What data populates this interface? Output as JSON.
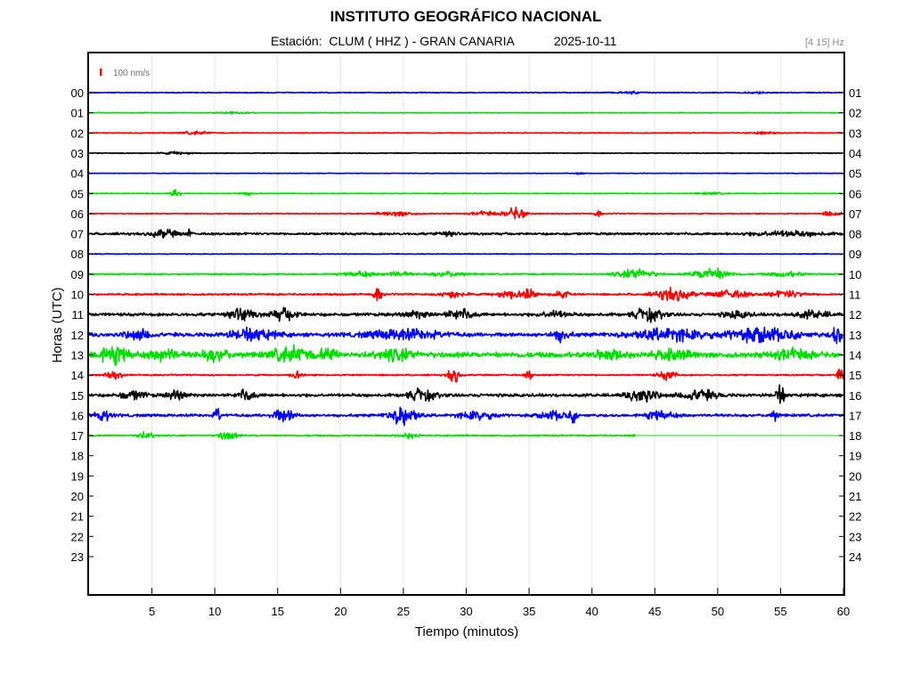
{
  "header": {
    "title": "INSTITUTO GEOGRÁFICO NACIONAL",
    "station_prefix": "Estación:",
    "station": "CLUM ( HHZ ) - GRAN CANARIA",
    "date": "2025-10-11",
    "filter": "[4 15] Hz"
  },
  "chart_data": {
    "type": "line",
    "title": "INSTITUTO GEOGRÁFICO NACIONAL",
    "xlabel": "Tiempo (minutos)",
    "ylabel": "Horas (UTC)",
    "xlim": [
      0,
      60
    ],
    "xticks": [
      5,
      10,
      15,
      20,
      25,
      30,
      35,
      40,
      45,
      50,
      55,
      60
    ],
    "scale_bar": {
      "label": "100 nm/s",
      "color": "#ff0000"
    },
    "left_hour_labels": [
      "00",
      "01",
      "02",
      "03",
      "04",
      "05",
      "06",
      "07",
      "08",
      "09",
      "10",
      "11",
      "12",
      "13",
      "14",
      "15",
      "16",
      "17",
      "18",
      "19",
      "20",
      "21",
      "22",
      "23"
    ],
    "right_hour_labels": [
      "01",
      "02",
      "03",
      "04",
      "05",
      "06",
      "07",
      "08",
      "09",
      "10",
      "11",
      "12",
      "13",
      "14",
      "15",
      "16",
      "17",
      "18",
      "19",
      "20",
      "21",
      "22",
      "23",
      "24"
    ],
    "grid": {
      "vertical": true,
      "horizontal": false
    },
    "trace_colors": [
      "#0000ff",
      "#00e000",
      "#ff0000",
      "#000000"
    ],
    "traces": [
      {
        "hour": "00",
        "noise": 0.6,
        "end_minute": 60,
        "events": [
          [
            43,
            1.5,
            1.5
          ],
          [
            53,
            1,
            1.2
          ]
        ]
      },
      {
        "hour": "01",
        "noise": 0.5,
        "end_minute": 60,
        "events": [
          [
            11.5,
            1.5,
            1.5
          ]
        ]
      },
      {
        "hour": "02",
        "noise": 0.6,
        "end_minute": 60,
        "events": [
          [
            8.5,
            1.5,
            2
          ],
          [
            53.5,
            1.5,
            1.5
          ]
        ]
      },
      {
        "hour": "03",
        "noise": 0.5,
        "end_minute": 60,
        "events": [
          [
            7,
            2,
            1.5
          ]
        ]
      },
      {
        "hour": "04",
        "noise": 0.4,
        "end_minute": 60,
        "events": [
          [
            39,
            0.5,
            1.5
          ]
        ]
      },
      {
        "hour": "05",
        "noise": 0.5,
        "end_minute": 60,
        "events": [
          [
            6.9,
            0.4,
            13
          ],
          [
            12.5,
            1,
            2
          ],
          [
            49.5,
            1.5,
            1.5
          ]
        ]
      },
      {
        "hour": "06",
        "noise": 0.6,
        "end_minute": 60,
        "events": [
          [
            24.5,
            2,
            3
          ],
          [
            31.5,
            1.5,
            3
          ],
          [
            34,
            1.2,
            8
          ],
          [
            40.5,
            0.4,
            4
          ],
          [
            59,
            1,
            3
          ]
        ]
      },
      {
        "hour": "07",
        "noise": 1.5,
        "end_minute": 60,
        "events": [
          [
            6,
            1.5,
            5
          ],
          [
            8,
            0.2,
            6
          ],
          [
            28.5,
            1,
            4
          ],
          [
            55.5,
            4,
            3
          ]
        ]
      },
      {
        "hour": "08",
        "noise": 0.5,
        "end_minute": 60,
        "events": []
      },
      {
        "hour": "09",
        "noise": 1.0,
        "end_minute": 60,
        "events": [
          [
            21.5,
            1.5,
            4
          ],
          [
            24.5,
            1.5,
            3
          ],
          [
            28.5,
            2,
            3
          ],
          [
            43.5,
            2,
            7
          ],
          [
            49.5,
            2,
            8
          ],
          [
            55.5,
            2,
            3
          ]
        ]
      },
      {
        "hour": "10",
        "noise": 1.2,
        "end_minute": 60,
        "events": [
          [
            23,
            0.5,
            9
          ],
          [
            29,
            1.5,
            4
          ],
          [
            33.5,
            1.5,
            5
          ],
          [
            35,
            0.6,
            8
          ],
          [
            37.5,
            1,
            5
          ],
          [
            46.5,
            2,
            8
          ],
          [
            51,
            2,
            5
          ],
          [
            55.5,
            2,
            4
          ]
        ]
      },
      {
        "hour": "11",
        "noise": 2.0,
        "end_minute": 60,
        "events": [
          [
            12,
            1.5,
            8
          ],
          [
            15.5,
            1.5,
            7
          ],
          [
            26,
            1.5,
            4
          ],
          [
            29.5,
            1.5,
            6
          ],
          [
            37,
            1.5,
            4
          ],
          [
            44.5,
            1.5,
            8
          ],
          [
            51.5,
            1.5,
            4
          ],
          [
            57.5,
            2,
            4
          ]
        ]
      },
      {
        "hour": "12",
        "noise": 2.5,
        "end_minute": 60,
        "events": [
          [
            4,
            1.5,
            6
          ],
          [
            13,
            2.5,
            7
          ],
          [
            25,
            4,
            6
          ],
          [
            37.5,
            1,
            7
          ],
          [
            46,
            4,
            7
          ],
          [
            53.5,
            4,
            8
          ],
          [
            59.5,
            0.6,
            14
          ]
        ]
      },
      {
        "hour": "13",
        "noise": 3.5,
        "end_minute": 60,
        "events": [
          [
            2,
            2,
            9
          ],
          [
            6,
            1.5,
            7
          ],
          [
            10,
            1.5,
            7
          ],
          [
            16,
            2,
            9
          ],
          [
            19,
            1,
            7
          ],
          [
            24.5,
            2,
            7
          ],
          [
            41.5,
            2,
            5
          ],
          [
            46.5,
            2,
            5
          ],
          [
            56,
            2,
            6
          ]
        ]
      },
      {
        "hour": "14",
        "noise": 1.0,
        "end_minute": 60,
        "events": [
          [
            2,
            1,
            4
          ],
          [
            16.5,
            0.6,
            5
          ],
          [
            29,
            0.6,
            11
          ],
          [
            35,
            0.4,
            6
          ],
          [
            46,
            1,
            6
          ],
          [
            59.8,
            0.4,
            14
          ]
        ]
      },
      {
        "hour": "15",
        "noise": 2.0,
        "end_minute": 60,
        "events": [
          [
            3.5,
            1.5,
            5
          ],
          [
            7,
            1,
            6
          ],
          [
            12.5,
            1,
            6
          ],
          [
            26.5,
            1.5,
            7
          ],
          [
            44,
            1.5,
            9
          ],
          [
            48.5,
            2,
            7
          ],
          [
            55,
            0.5,
            11
          ]
        ]
      },
      {
        "hour": "16",
        "noise": 1.8,
        "end_minute": 60,
        "events": [
          [
            1,
            1,
            7
          ],
          [
            10.2,
            0.3,
            12
          ],
          [
            15.5,
            1.2,
            8
          ],
          [
            25,
            1.5,
            12
          ],
          [
            31,
            2,
            5
          ],
          [
            37,
            1.5,
            5
          ],
          [
            38.5,
            0.4,
            8
          ],
          [
            45.5,
            1.5,
            6
          ],
          [
            54.5,
            0.5,
            6
          ]
        ]
      },
      {
        "hour": "17",
        "noise": 1.0,
        "end_minute": 43.4,
        "events": [
          [
            4.5,
            1,
            4
          ],
          [
            11,
            1,
            6
          ],
          [
            25.5,
            1,
            4
          ],
          [
            43.4,
            0.1,
            8
          ]
        ]
      }
    ]
  }
}
